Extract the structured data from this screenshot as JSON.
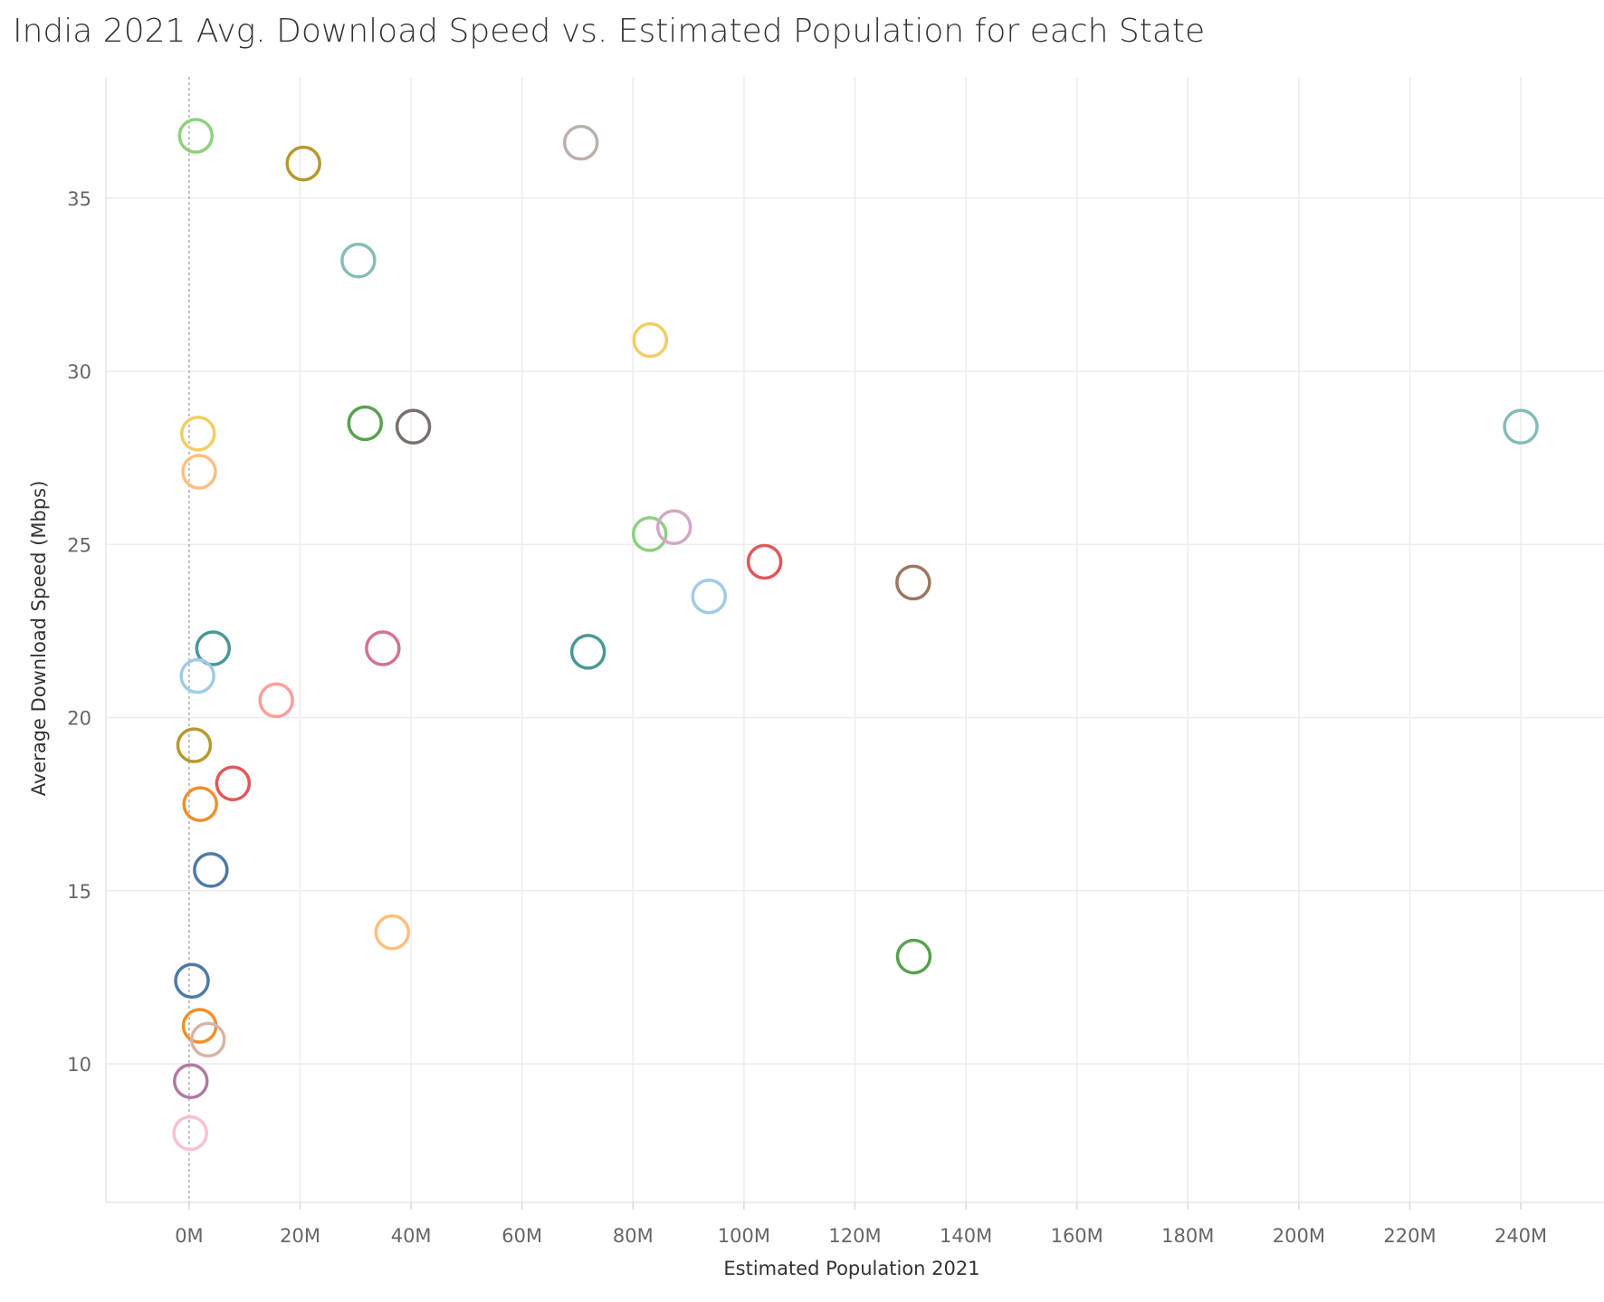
{
  "chart_data": {
    "type": "scatter",
    "title": "India 2021 Avg. Download Speed vs. Estimated Population for each State",
    "xlabel": "Estimated Population 2021",
    "ylabel": "Average Download Speed (Mbps)",
    "xlim": [
      -15,
      255
    ],
    "ylim": [
      6,
      38.5
    ],
    "x_unit": "M",
    "x_ticks": [
      0,
      20,
      40,
      60,
      80,
      100,
      120,
      140,
      160,
      180,
      200,
      220,
      240
    ],
    "x_tick_labels": [
      "0M",
      "20M",
      "40M",
      "60M",
      "80M",
      "100M",
      "120M",
      "140M",
      "160M",
      "180M",
      "200M",
      "220M",
      "240M"
    ],
    "y_ticks": [
      10,
      15,
      20,
      25,
      30,
      35
    ],
    "y_tick_labels": [
      "10",
      "15",
      "20",
      "25",
      "30",
      "35"
    ],
    "grid": true,
    "zero_reference_line": true,
    "marker": "hollow-circle",
    "points": [
      {
        "x": 1.2,
        "y": 36.8,
        "color": "#8CD17D"
      },
      {
        "x": 20.6,
        "y": 36.0,
        "color": "#B6992D"
      },
      {
        "x": 70.6,
        "y": 36.6,
        "color": "#BAB0AC"
      },
      {
        "x": 30.5,
        "y": 33.2,
        "color": "#86BCB6"
      },
      {
        "x": 83.1,
        "y": 30.9,
        "color": "#F1CE63"
      },
      {
        "x": 1.6,
        "y": 28.2,
        "color": "#F1CE63"
      },
      {
        "x": 31.7,
        "y": 28.5,
        "color": "#59A14F"
      },
      {
        "x": 40.4,
        "y": 28.4,
        "color": "#79706E"
      },
      {
        "x": 240.0,
        "y": 28.4,
        "color": "#86BCB6"
      },
      {
        "x": 1.8,
        "y": 27.1,
        "color": "#FFBE7D"
      },
      {
        "x": 83.0,
        "y": 25.3,
        "color": "#8CD17D"
      },
      {
        "x": 87.4,
        "y": 25.5,
        "color": "#D4A6C8"
      },
      {
        "x": 103.7,
        "y": 24.5,
        "color": "#E15759"
      },
      {
        "x": 130.5,
        "y": 23.9,
        "color": "#9D7660"
      },
      {
        "x": 93.7,
        "y": 23.5,
        "color": "#A0CBE8"
      },
      {
        "x": 4.3,
        "y": 22.0,
        "color": "#499894"
      },
      {
        "x": 34.9,
        "y": 22.0,
        "color": "#D37295"
      },
      {
        "x": 71.9,
        "y": 21.9,
        "color": "#499894"
      },
      {
        "x": 1.5,
        "y": 21.2,
        "color": "#A0CBE8"
      },
      {
        "x": 15.7,
        "y": 20.5,
        "color": "#FF9D9A"
      },
      {
        "x": 0.9,
        "y": 19.2,
        "color": "#B6992D"
      },
      {
        "x": 7.9,
        "y": 18.1,
        "color": "#E15759"
      },
      {
        "x": 2.0,
        "y": 17.5,
        "color": "#F28E2B"
      },
      {
        "x": 3.9,
        "y": 15.6,
        "color": "#4E79A7"
      },
      {
        "x": 36.6,
        "y": 13.8,
        "color": "#FFBE7D"
      },
      {
        "x": 130.6,
        "y": 13.1,
        "color": "#59A14F"
      },
      {
        "x": 0.5,
        "y": 12.4,
        "color": "#4E79A7"
      },
      {
        "x": 1.9,
        "y": 11.1,
        "color": "#F28E2B"
      },
      {
        "x": 3.4,
        "y": 10.7,
        "color": "#D7B5A6"
      },
      {
        "x": 0.3,
        "y": 9.5,
        "color": "#B07AA1"
      },
      {
        "x": 0.2,
        "y": 8.0,
        "color": "#FABFD2"
      }
    ]
  }
}
